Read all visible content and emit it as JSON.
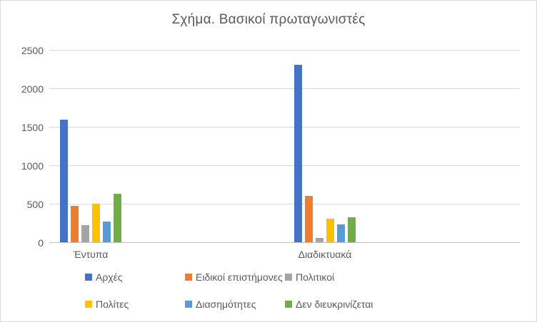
{
  "chart_data": {
    "type": "bar",
    "title": "Σχήμα. Βασικοί πρωταγωνιστές",
    "categories": [
      "Έντυπα",
      "Διαδικτυακά"
    ],
    "series": [
      {
        "name": "Αρχές",
        "color": "#4472C4",
        "values": [
          1590,
          2310
        ]
      },
      {
        "name": "Ειδικοί επιστήμονες",
        "color": "#ED7D31",
        "values": [
          470,
          600
        ]
      },
      {
        "name": "Πολιτικοί",
        "color": "#A5A5A5",
        "values": [
          220,
          60
        ]
      },
      {
        "name": "Πολίτες",
        "color": "#FFC000",
        "values": [
          500,
          310
        ]
      },
      {
        "name": "Διασημότητες",
        "color": "#5B9BD5",
        "values": [
          270,
          230
        ]
      },
      {
        "name": "Δεν διευκρινίζεται",
        "color": "#70AD47",
        "values": [
          630,
          320
        ]
      }
    ],
    "ylim": [
      0,
      2500
    ],
    "yticks": [
      0,
      500,
      1000,
      1500,
      2000,
      2500
    ],
    "grid": true,
    "legend_position": "bottom",
    "text_color": "#595959",
    "gridline_color": "#D9D9D9",
    "axisline_color": "#BFBFBF"
  }
}
